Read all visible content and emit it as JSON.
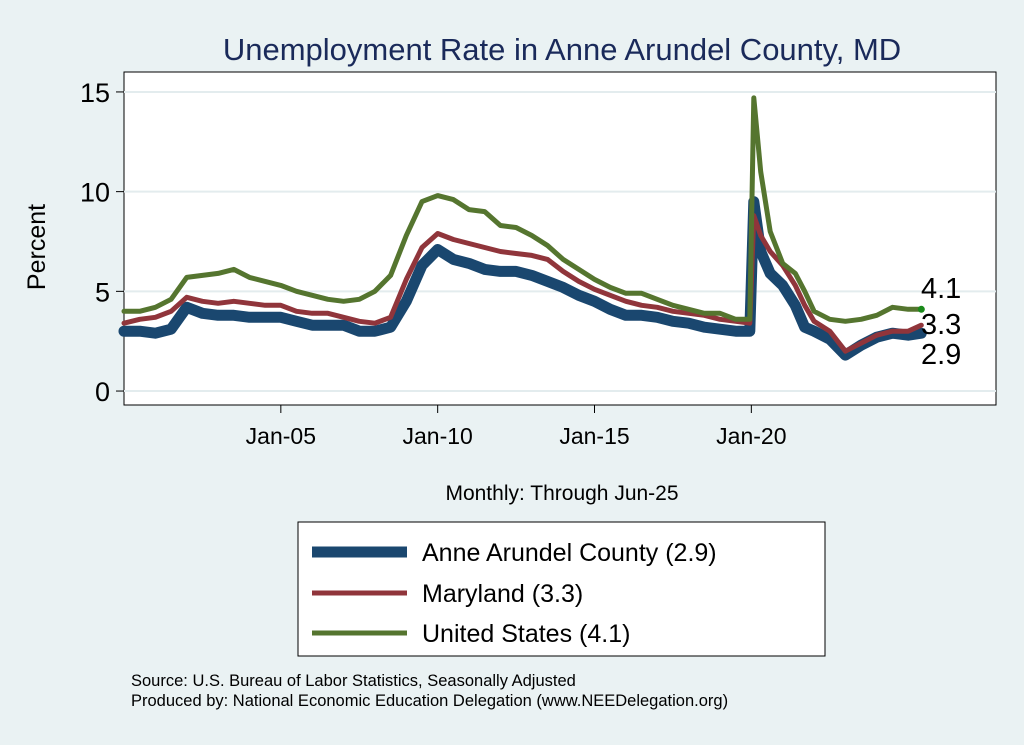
{
  "chart_data": {
    "type": "line",
    "title": "Unemployment Rate in Anne Arundel  County, MD",
    "ylabel": "Percent",
    "xlabel": "Monthly: Through Jun-25",
    "ylim": [
      -0.7,
      16
    ],
    "yticks": [
      0,
      5,
      10,
      15
    ],
    "xlim": [
      2000.0,
      2027.8
    ],
    "xtick_labels": [
      "Jan-05",
      "Jan-10",
      "Jan-15",
      "Jan-20"
    ],
    "xtick_values": [
      2005.0,
      2010.0,
      2015.0,
      2020.0
    ],
    "grid": true,
    "legend_position": "bottom",
    "end_labels": [
      "4.1",
      "3.3",
      "2.9"
    ],
    "series": [
      {
        "name": "Anne Arundel  County (2.9)",
        "color": "#1a476f",
        "points": [
          [
            2000.0,
            3.0
          ],
          [
            2000.5,
            3.0
          ],
          [
            2001.0,
            2.9
          ],
          [
            2001.5,
            3.1
          ],
          [
            2002.0,
            4.2
          ],
          [
            2002.5,
            3.9
          ],
          [
            2003.0,
            3.8
          ],
          [
            2003.5,
            3.8
          ],
          [
            2004.0,
            3.7
          ],
          [
            2004.5,
            3.7
          ],
          [
            2005.0,
            3.7
          ],
          [
            2005.5,
            3.5
          ],
          [
            2006.0,
            3.3
          ],
          [
            2006.5,
            3.3
          ],
          [
            2007.0,
            3.3
          ],
          [
            2007.5,
            3.0
          ],
          [
            2008.0,
            3.0
          ],
          [
            2008.5,
            3.2
          ],
          [
            2009.0,
            4.5
          ],
          [
            2009.5,
            6.3
          ],
          [
            2010.0,
            7.1
          ],
          [
            2010.5,
            6.6
          ],
          [
            2011.0,
            6.4
          ],
          [
            2011.5,
            6.1
          ],
          [
            2012.0,
            6.0
          ],
          [
            2012.5,
            6.0
          ],
          [
            2013.0,
            5.8
          ],
          [
            2013.5,
            5.5
          ],
          [
            2014.0,
            5.2
          ],
          [
            2014.5,
            4.8
          ],
          [
            2015.0,
            4.5
          ],
          [
            2015.5,
            4.1
          ],
          [
            2016.0,
            3.8
          ],
          [
            2016.5,
            3.8
          ],
          [
            2017.0,
            3.7
          ],
          [
            2017.5,
            3.5
          ],
          [
            2018.0,
            3.4
          ],
          [
            2018.5,
            3.2
          ],
          [
            2019.0,
            3.1
          ],
          [
            2019.5,
            3.0
          ],
          [
            2019.95,
            3.0
          ],
          [
            2020.08,
            9.5
          ],
          [
            2020.3,
            7.0
          ],
          [
            2020.6,
            5.9
          ],
          [
            2021.0,
            5.3
          ],
          [
            2021.4,
            4.3
          ],
          [
            2021.7,
            3.2
          ],
          [
            2022.0,
            3.0
          ],
          [
            2022.5,
            2.6
          ],
          [
            2023.0,
            1.8
          ],
          [
            2023.5,
            2.3
          ],
          [
            2024.0,
            2.7
          ],
          [
            2024.5,
            2.9
          ],
          [
            2025.0,
            2.8
          ],
          [
            2025.42,
            2.9
          ]
        ]
      },
      {
        "name": "Maryland (3.3)",
        "color": "#90353b",
        "points": [
          [
            2000.0,
            3.4
          ],
          [
            2000.5,
            3.6
          ],
          [
            2001.0,
            3.7
          ],
          [
            2001.5,
            4.0
          ],
          [
            2002.0,
            4.7
          ],
          [
            2002.5,
            4.5
          ],
          [
            2003.0,
            4.4
          ],
          [
            2003.5,
            4.5
          ],
          [
            2004.0,
            4.4
          ],
          [
            2004.5,
            4.3
          ],
          [
            2005.0,
            4.3
          ],
          [
            2005.5,
            4.0
          ],
          [
            2006.0,
            3.9
          ],
          [
            2006.5,
            3.9
          ],
          [
            2007.0,
            3.7
          ],
          [
            2007.5,
            3.5
          ],
          [
            2008.0,
            3.4
          ],
          [
            2008.5,
            3.7
          ],
          [
            2009.0,
            5.6
          ],
          [
            2009.5,
            7.2
          ],
          [
            2010.0,
            7.9
          ],
          [
            2010.5,
            7.6
          ],
          [
            2011.0,
            7.4
          ],
          [
            2011.5,
            7.2
          ],
          [
            2012.0,
            7.0
          ],
          [
            2012.5,
            6.9
          ],
          [
            2013.0,
            6.8
          ],
          [
            2013.5,
            6.6
          ],
          [
            2014.0,
            6.0
          ],
          [
            2014.5,
            5.5
          ],
          [
            2015.0,
            5.1
          ],
          [
            2015.5,
            4.8
          ],
          [
            2016.0,
            4.5
          ],
          [
            2016.5,
            4.3
          ],
          [
            2017.0,
            4.2
          ],
          [
            2017.5,
            4.0
          ],
          [
            2018.0,
            3.9
          ],
          [
            2018.5,
            3.8
          ],
          [
            2019.0,
            3.6
          ],
          [
            2019.5,
            3.5
          ],
          [
            2019.95,
            3.4
          ],
          [
            2020.08,
            8.8
          ],
          [
            2020.3,
            7.8
          ],
          [
            2020.6,
            7.0
          ],
          [
            2021.0,
            6.3
          ],
          [
            2021.4,
            5.3
          ],
          [
            2021.7,
            4.3
          ],
          [
            2022.0,
            3.5
          ],
          [
            2022.5,
            3.0
          ],
          [
            2023.0,
            2.0
          ],
          [
            2023.5,
            2.4
          ],
          [
            2024.0,
            2.8
          ],
          [
            2024.5,
            3.0
          ],
          [
            2025.0,
            3.0
          ],
          [
            2025.42,
            3.3
          ]
        ]
      },
      {
        "name": "United States (4.1)",
        "color": "#55752f",
        "points": [
          [
            2000.0,
            4.0
          ],
          [
            2000.5,
            4.0
          ],
          [
            2001.0,
            4.2
          ],
          [
            2001.5,
            4.6
          ],
          [
            2002.0,
            5.7
          ],
          [
            2002.5,
            5.8
          ],
          [
            2003.0,
            5.9
          ],
          [
            2003.5,
            6.1
          ],
          [
            2004.0,
            5.7
          ],
          [
            2004.5,
            5.5
          ],
          [
            2005.0,
            5.3
          ],
          [
            2005.5,
            5.0
          ],
          [
            2006.0,
            4.8
          ],
          [
            2006.5,
            4.6
          ],
          [
            2007.0,
            4.5
          ],
          [
            2007.5,
            4.6
          ],
          [
            2008.0,
            5.0
          ],
          [
            2008.5,
            5.8
          ],
          [
            2009.0,
            7.8
          ],
          [
            2009.5,
            9.5
          ],
          [
            2010.0,
            9.8
          ],
          [
            2010.5,
            9.6
          ],
          [
            2011.0,
            9.1
          ],
          [
            2011.5,
            9.0
          ],
          [
            2012.0,
            8.3
          ],
          [
            2012.5,
            8.2
          ],
          [
            2013.0,
            7.8
          ],
          [
            2013.5,
            7.3
          ],
          [
            2014.0,
            6.6
          ],
          [
            2014.5,
            6.1
          ],
          [
            2015.0,
            5.6
          ],
          [
            2015.5,
            5.2
          ],
          [
            2016.0,
            4.9
          ],
          [
            2016.5,
            4.9
          ],
          [
            2017.0,
            4.6
          ],
          [
            2017.5,
            4.3
          ],
          [
            2018.0,
            4.1
          ],
          [
            2018.5,
            3.9
          ],
          [
            2019.0,
            3.9
          ],
          [
            2019.5,
            3.6
          ],
          [
            2019.95,
            3.6
          ],
          [
            2020.08,
            14.7
          ],
          [
            2020.3,
            11.0
          ],
          [
            2020.6,
            8.0
          ],
          [
            2021.0,
            6.4
          ],
          [
            2021.4,
            5.9
          ],
          [
            2021.7,
            5.0
          ],
          [
            2022.0,
            4.0
          ],
          [
            2022.5,
            3.6
          ],
          [
            2023.0,
            3.5
          ],
          [
            2023.5,
            3.6
          ],
          [
            2024.0,
            3.8
          ],
          [
            2024.5,
            4.2
          ],
          [
            2025.0,
            4.1
          ],
          [
            2025.42,
            4.1
          ]
        ]
      }
    ],
    "source_lines": [
      "Source: U.S. Bureau of Labor Statistics, Seasonally Adjusted",
      "Produced by: National Economic Education Delegation (www.NEEDelegation.org)"
    ]
  }
}
